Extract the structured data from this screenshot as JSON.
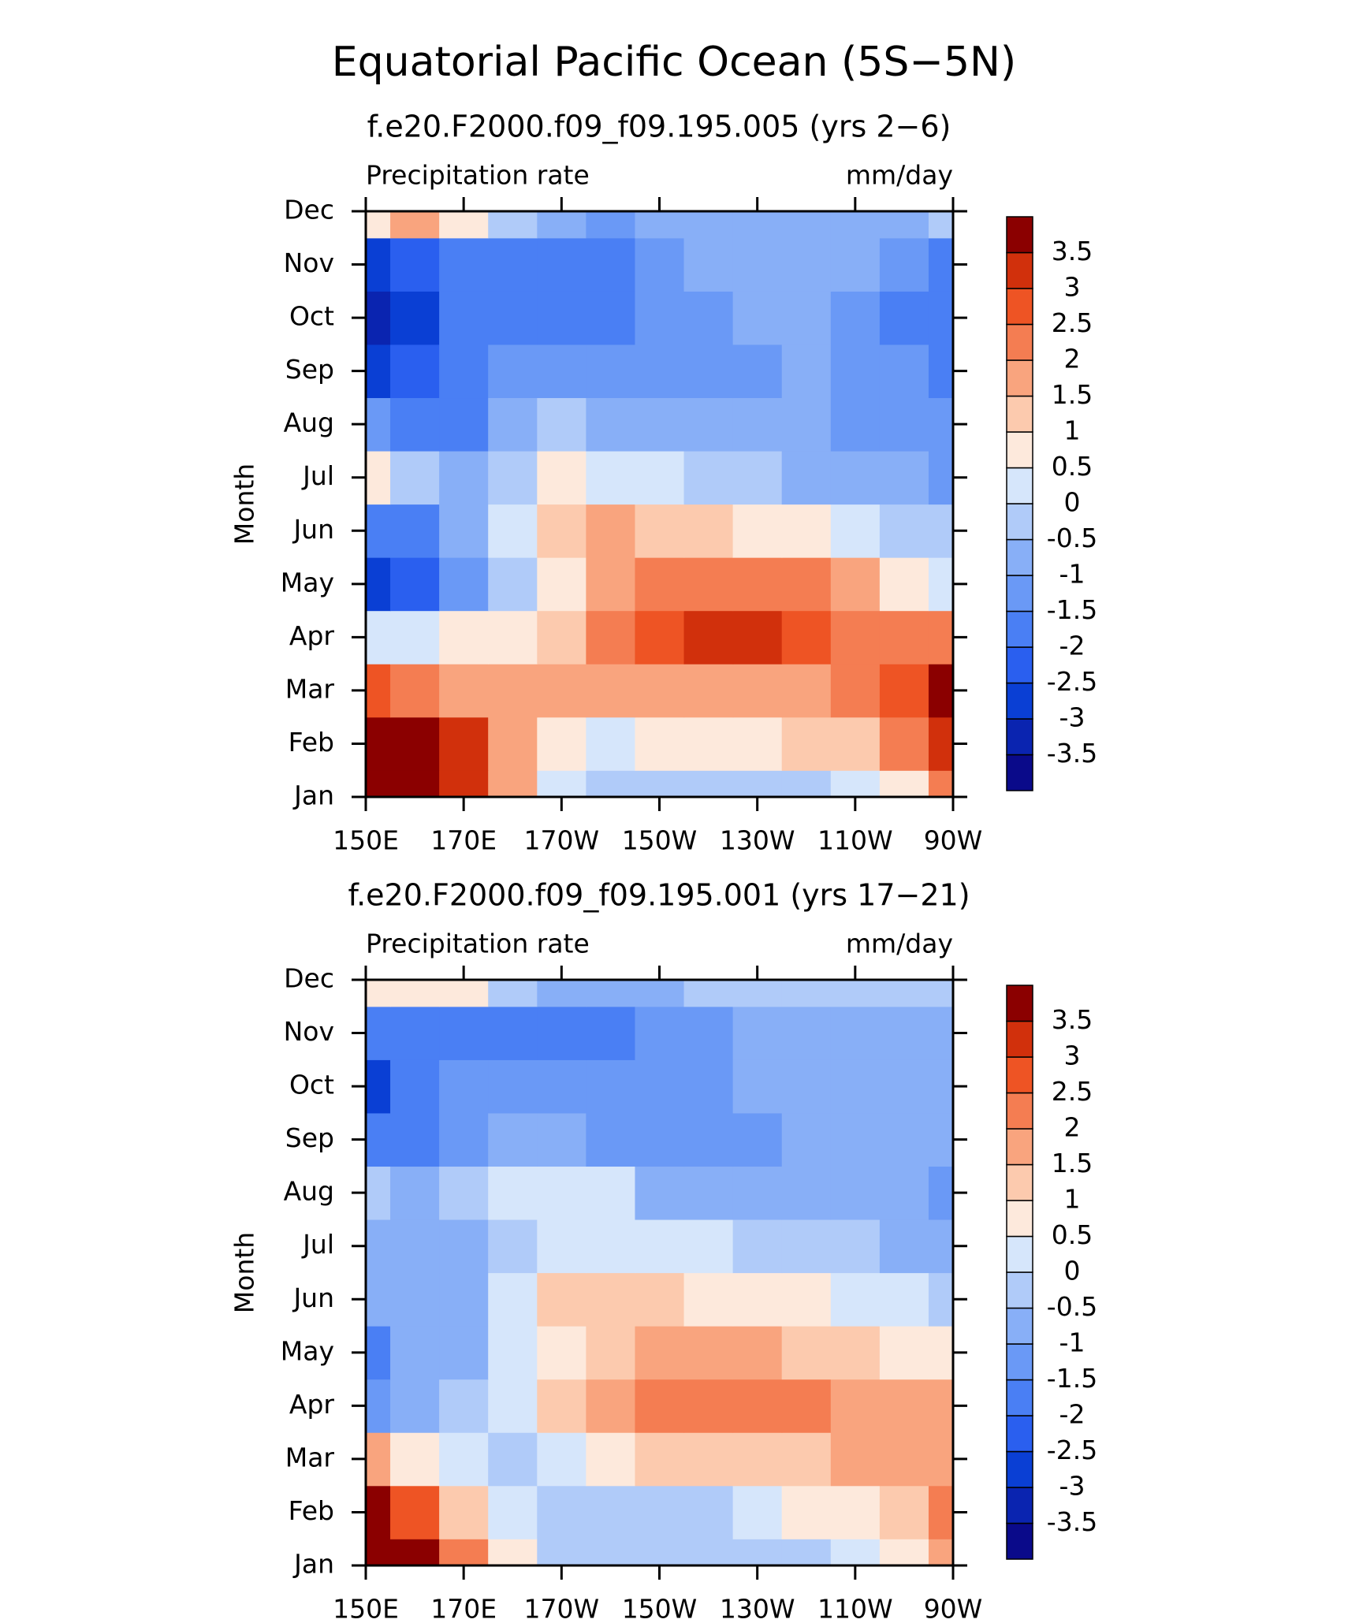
{
  "title": "Equatorial Pacific Ocean (5S−5N)",
  "chart_data": [
    {
      "type": "contour",
      "title": "f.e20.F2000.f09_f09.195.005 (yrs 2−6)",
      "left_label": "Precipitation rate",
      "right_label": "mm/day",
      "y_label": "Month",
      "x": [
        150,
        160,
        170,
        180,
        190,
        200,
        210,
        220,
        230,
        240,
        250,
        260,
        270
      ],
      "xlim": [
        150,
        270
      ],
      "xticks": [
        {
          "value": 150,
          "label": "150E"
        },
        {
          "value": 170,
          "label": "170E"
        },
        {
          "value": 190,
          "label": "170W"
        },
        {
          "value": 210,
          "label": "150W"
        },
        {
          "value": 230,
          "label": "130W"
        },
        {
          "value": 250,
          "label": "110W"
        },
        {
          "value": 270,
          "label": "90W"
        }
      ],
      "categories": [
        "Jan",
        "Feb",
        "Mar",
        "Apr",
        "May",
        "Jun",
        "Jul",
        "Aug",
        "Sep",
        "Oct",
        "Nov",
        "Dec"
      ],
      "levels": [
        -3.5,
        -3,
        -2.5,
        -2,
        -1.5,
        -1,
        -0.5,
        0,
        0.5,
        1,
        1.5,
        2,
        2.5,
        3,
        3.5
      ],
      "colors": [
        "#0a0a8a",
        "#0a24b0",
        "#0a3fd4",
        "#2a5fef",
        "#4a7ff4",
        "#6a99f6",
        "#88aff7",
        "#b0cbf9",
        "#d6e6fb",
        "#fde9dc",
        "#fccaae",
        "#f9a47e",
        "#f47d52",
        "#ee5424",
        "#d1300c",
        "#8b0000"
      ],
      "z": [
        [
          4,
          4,
          3,
          1.5,
          0,
          -0.3,
          -0.3,
          -0.3,
          -0.3,
          -0.3,
          0.3,
          0.8,
          2
        ],
        [
          4,
          4,
          3,
          1.5,
          0.5,
          0.3,
          0.5,
          0.7,
          0.8,
          1,
          1.3,
          2,
          3
        ],
        [
          2.5,
          2.2,
          1.8,
          1.5,
          1.7,
          1.8,
          1.8,
          1.8,
          1.8,
          1.9,
          2,
          2.5,
          3.5
        ],
        [
          0.3,
          0.2,
          0.5,
          0.8,
          1.3,
          2,
          2.8,
          3.2,
          3,
          2.7,
          2.2,
          2,
          2
        ],
        [
          -3,
          -2.5,
          -1.5,
          -0.5,
          0.5,
          1.5,
          2,
          2.2,
          2.2,
          2,
          1.5,
          0.8,
          0.2
        ],
        [
          -2,
          -2,
          -1,
          0,
          1,
          1.5,
          1.2,
          1,
          0.8,
          0.5,
          0.2,
          -0.2,
          -0.5
        ],
        [
          0.8,
          -0.5,
          -1,
          -0.3,
          0.5,
          0.3,
          0,
          -0.3,
          -0.5,
          -0.7,
          -0.8,
          -1,
          -1.2
        ],
        [
          -1.5,
          -1.8,
          -1.6,
          -0.8,
          -0.3,
          -0.6,
          -0.8,
          -0.9,
          -1,
          -1,
          -1.1,
          -1.3,
          -1.5
        ],
        [
          -3,
          -2.5,
          -2,
          -1.5,
          -1.2,
          -1.3,
          -1.3,
          -1.3,
          -1.2,
          -1,
          -1.1,
          -1.5,
          -1.7
        ],
        [
          -3.3,
          -3,
          -2,
          -1.7,
          -1.6,
          -1.6,
          -1.2,
          -1.1,
          -0.9,
          -0.8,
          -1.2,
          -1.6,
          -1.8
        ],
        [
          -3,
          -2.5,
          -2,
          -2,
          -1.8,
          -1.6,
          -1.2,
          -0.9,
          -0.8,
          -0.8,
          -0.9,
          -1.5,
          -1.8
        ],
        [
          0.5,
          1.5,
          0.5,
          -0.5,
          -1,
          -1.2,
          -0.9,
          -0.7,
          -0.6,
          -0.6,
          -0.6,
          -0.6,
          -0.3
        ]
      ]
    },
    {
      "type": "contour",
      "title": "f.e20.F2000.f09_f09.195.001 (yrs 17−21)",
      "left_label": "Precipitation rate",
      "right_label": "mm/day",
      "y_label": "Month",
      "x": [
        150,
        160,
        170,
        180,
        190,
        200,
        210,
        220,
        230,
        240,
        250,
        260,
        270
      ],
      "xlim": [
        150,
        270
      ],
      "xticks": [
        {
          "value": 150,
          "label": "150E"
        },
        {
          "value": 170,
          "label": "170E"
        },
        {
          "value": 190,
          "label": "170W"
        },
        {
          "value": 210,
          "label": "150W"
        },
        {
          "value": 230,
          "label": "130W"
        },
        {
          "value": 250,
          "label": "110W"
        },
        {
          "value": 270,
          "label": "90W"
        }
      ],
      "categories": [
        "Jan",
        "Feb",
        "Mar",
        "Apr",
        "May",
        "Jun",
        "Jul",
        "Aug",
        "Sep",
        "Oct",
        "Nov",
        "Dec"
      ],
      "levels": [
        -3.5,
        -3,
        -2.5,
        -2,
        -1.5,
        -1,
        -0.5,
        0,
        0.5,
        1,
        1.5,
        2,
        2.5,
        3,
        3.5
      ],
      "colors": [
        "#0a0a8a",
        "#0a24b0",
        "#0a3fd4",
        "#2a5fef",
        "#4a7ff4",
        "#6a99f6",
        "#88aff7",
        "#b0cbf9",
        "#d6e6fb",
        "#fde9dc",
        "#fccaae",
        "#f9a47e",
        "#f47d52",
        "#ee5424",
        "#d1300c",
        "#8b0000"
      ],
      "z": [
        [
          4,
          3.5,
          2,
          0.5,
          -0.3,
          -0.5,
          -0.5,
          -0.5,
          -0.5,
          -0.3,
          0,
          0.5,
          1.5
        ],
        [
          3.5,
          2.5,
          1.2,
          0.3,
          -0.3,
          -0.3,
          -0.3,
          -0.1,
          0.3,
          0.6,
          0.9,
          1.3,
          2
        ],
        [
          1.5,
          0.8,
          0.2,
          -0.3,
          0.3,
          0.8,
          1,
          1.2,
          1.3,
          1.4,
          1.5,
          1.7,
          1.8
        ],
        [
          -1.2,
          -1,
          -0.4,
          0.2,
          1,
          1.8,
          2.1,
          2.2,
          2.1,
          2,
          1.7,
          1.5,
          1.5
        ],
        [
          -1.6,
          -1,
          -1,
          0,
          0.8,
          1.2,
          1.6,
          1.6,
          1.5,
          1.4,
          1.2,
          0.8,
          0.5
        ],
        [
          -0.8,
          -0.8,
          -0.8,
          0,
          1,
          1.2,
          1.1,
          0.9,
          0.7,
          0.5,
          0.3,
          0.2,
          -0.2
        ],
        [
          -0.8,
          -0.8,
          -0.6,
          -0.2,
          0.3,
          0.4,
          0.3,
          0,
          -0.2,
          -0.4,
          -0.5,
          -0.6,
          -0.8
        ],
        [
          -0.3,
          -0.6,
          -0.4,
          0.2,
          0.2,
          0,
          -0.6,
          -0.8,
          -0.9,
          -0.9,
          -0.9,
          -1,
          -1.2
        ],
        [
          -2,
          -1.7,
          -1.2,
          -0.8,
          -1,
          -1.2,
          -1.3,
          -1.3,
          -1.2,
          -0.9,
          -0.8,
          -1,
          -1
        ],
        [
          -2.6,
          -2,
          -1.5,
          -1.5,
          -1.2,
          -1.4,
          -1.3,
          -1.1,
          -0.9,
          -0.8,
          -0.8,
          -0.8,
          -0.8
        ],
        [
          -2,
          -2,
          -1.8,
          -1.8,
          -1.6,
          -1.6,
          -1.4,
          -1.2,
          -0.8,
          -0.8,
          -0.8,
          -0.7,
          -0.6
        ],
        [
          0.5,
          0.8,
          0.5,
          -0.2,
          -0.6,
          -0.6,
          -0.6,
          -0.5,
          -0.5,
          -0.5,
          -0.5,
          -0.4,
          -0.3
        ]
      ]
    }
  ]
}
